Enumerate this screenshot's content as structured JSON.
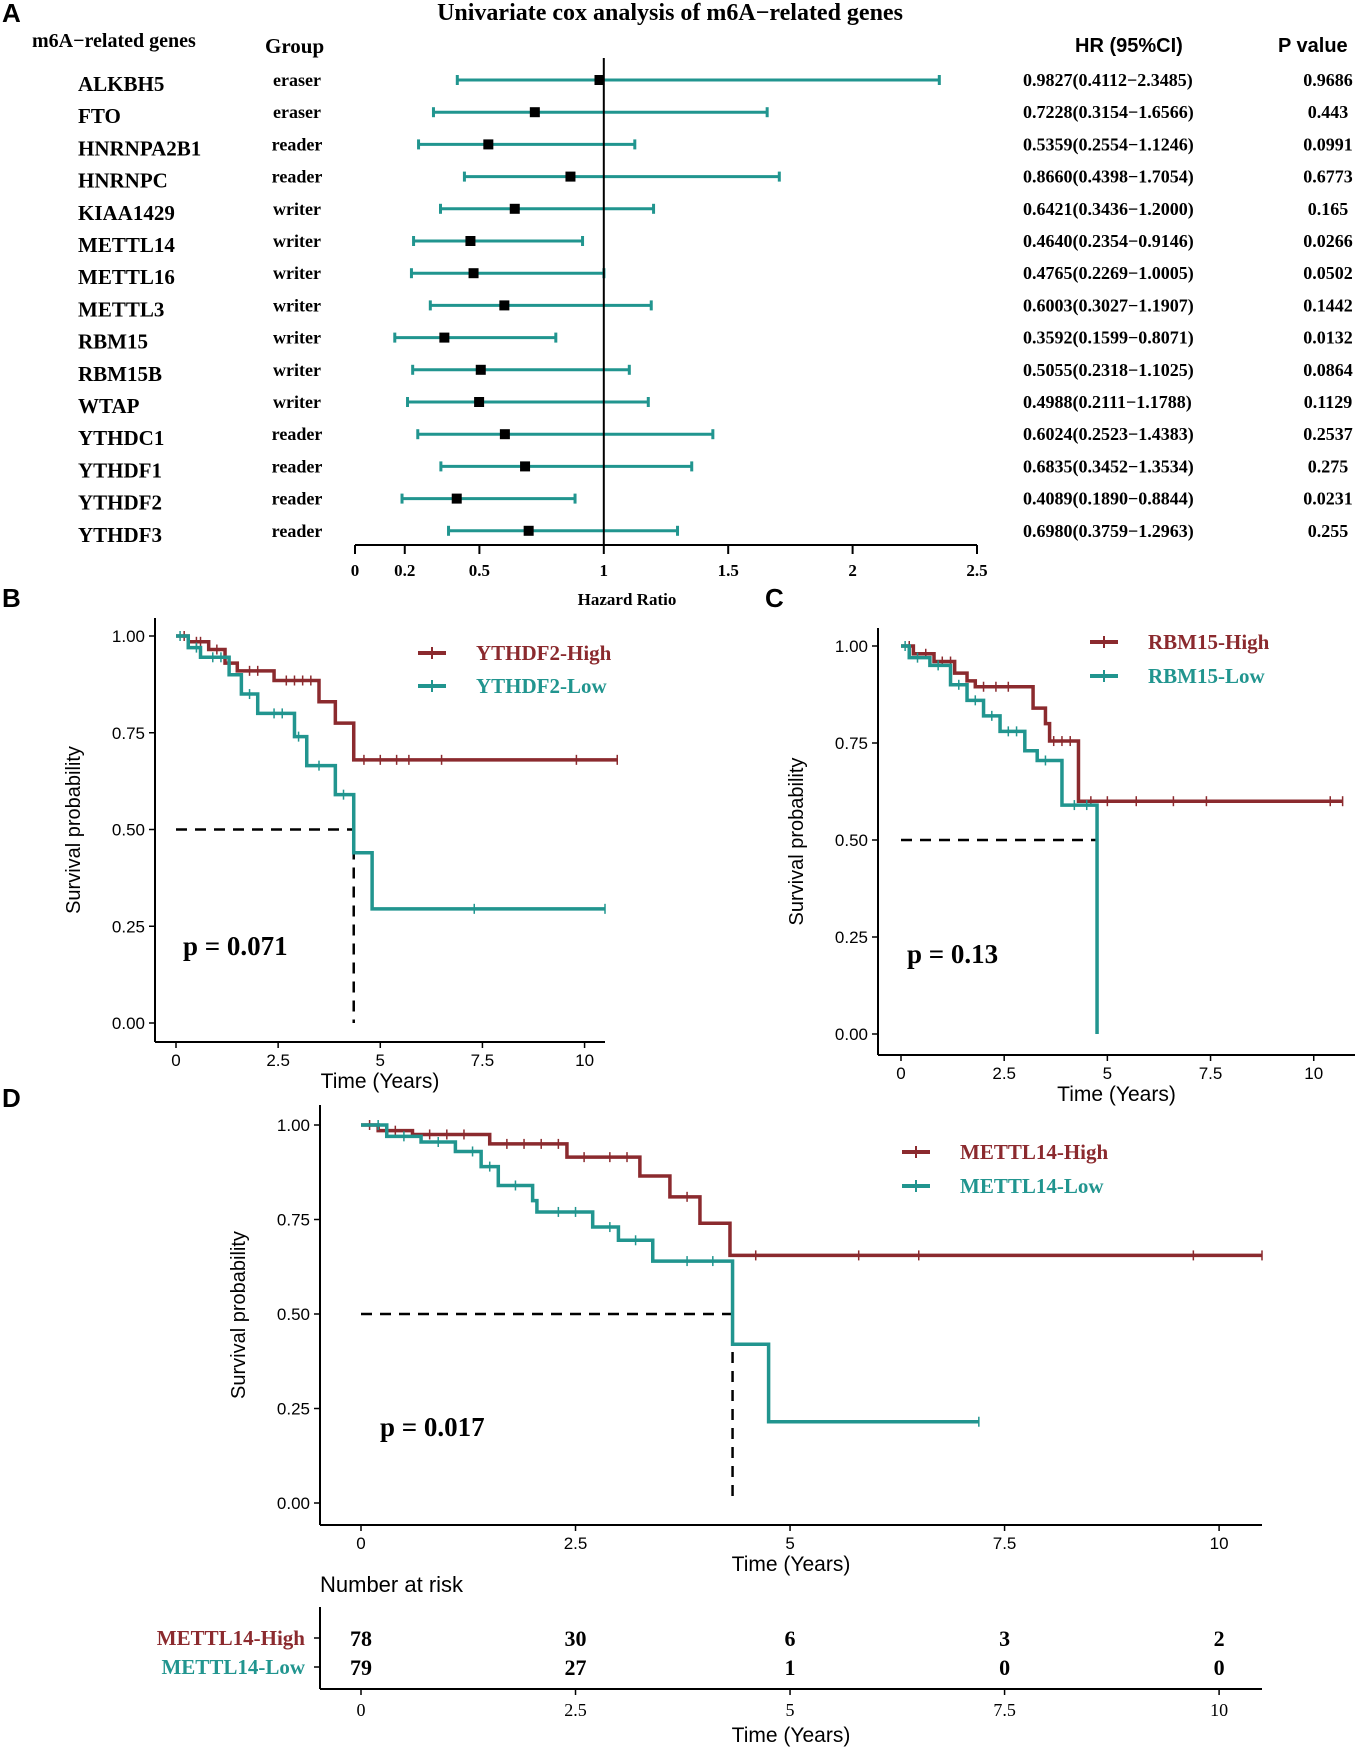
{
  "colors": {
    "high": "#8b2a2e",
    "low": "#21958f",
    "axis": "#000000",
    "forest": "#21958f"
  },
  "panels": {
    "a": "A",
    "b": "B",
    "c": "C",
    "d": "D"
  },
  "chart_data": [
    {
      "type": "forest",
      "panel": "A",
      "title": "Univariate cox analysis of m6A−related genes",
      "col_gene": "m6A−related genes",
      "col_group": "Group",
      "col_hr": "HR (95%CI)",
      "col_p": "P value",
      "xlabel": "Hazard Ratio",
      "xlim": [
        0,
        2.5
      ],
      "ticks": [
        0,
        0.2,
        0.5,
        1,
        1.5,
        2,
        2.5
      ],
      "tick_labels": [
        "0",
        "0.2",
        "0.5",
        "1",
        "1.5",
        "2",
        "2.5"
      ],
      "ref_line": 1,
      "rows": [
        {
          "gene": "ALKBH5",
          "group": "eraser",
          "hr": 0.9827,
          "lo": 0.4112,
          "hi": 2.3485,
          "hr_text": "0.9827(0.4112−2.3485)",
          "p": "0.9686"
        },
        {
          "gene": "FTO",
          "group": "eraser",
          "hr": 0.7228,
          "lo": 0.3154,
          "hi": 1.6566,
          "hr_text": "0.7228(0.3154−1.6566)",
          "p": "0.443"
        },
        {
          "gene": "HNRNPA2B1",
          "group": "reader",
          "hr": 0.5359,
          "lo": 0.2554,
          "hi": 1.1246,
          "hr_text": "0.5359(0.2554−1.1246)",
          "p": "0.0991"
        },
        {
          "gene": "HNRNPC",
          "group": "reader",
          "hr": 0.866,
          "lo": 0.4398,
          "hi": 1.7054,
          "hr_text": "0.8660(0.4398−1.7054)",
          "p": "0.6773"
        },
        {
          "gene": "KIAA1429",
          "group": "writer",
          "hr": 0.6421,
          "lo": 0.3436,
          "hi": 1.2,
          "hr_text": "0.6421(0.3436−1.2000)",
          "p": "0.165"
        },
        {
          "gene": "METTL14",
          "group": "writer",
          "hr": 0.464,
          "lo": 0.2354,
          "hi": 0.9146,
          "hr_text": "0.4640(0.2354−0.9146)",
          "p": "0.0266"
        },
        {
          "gene": "METTL16",
          "group": "writer",
          "hr": 0.4765,
          "lo": 0.2269,
          "hi": 1.0005,
          "hr_text": "0.4765(0.2269−1.0005)",
          "p": "0.0502"
        },
        {
          "gene": "METTL3",
          "group": "writer",
          "hr": 0.6003,
          "lo": 0.3027,
          "hi": 1.1907,
          "hr_text": "0.6003(0.3027−1.1907)",
          "p": "0.1442"
        },
        {
          "gene": "RBM15",
          "group": "writer",
          "hr": 0.3592,
          "lo": 0.1599,
          "hi": 0.8071,
          "hr_text": "0.3592(0.1599−0.8071)",
          "p": "0.0132"
        },
        {
          "gene": "RBM15B",
          "group": "writer",
          "hr": 0.5055,
          "lo": 0.2318,
          "hi": 1.1025,
          "hr_text": "0.5055(0.2318−1.1025)",
          "p": "0.0864"
        },
        {
          "gene": "WTAP",
          "group": "writer",
          "hr": 0.4988,
          "lo": 0.2111,
          "hi": 1.1788,
          "hr_text": "0.4988(0.2111−1.1788)",
          "p": "0.1129"
        },
        {
          "gene": "YTHDC1",
          "group": "reader",
          "hr": 0.6024,
          "lo": 0.2523,
          "hi": 1.4383,
          "hr_text": "0.6024(0.2523−1.4383)",
          "p": "0.2537"
        },
        {
          "gene": "YTHDF1",
          "group": "reader",
          "hr": 0.6835,
          "lo": 0.3452,
          "hi": 1.3534,
          "hr_text": "0.6835(0.3452−1.3534)",
          "p": "0.275"
        },
        {
          "gene": "YTHDF2",
          "group": "reader",
          "hr": 0.4089,
          "lo": 0.189,
          "hi": 0.8844,
          "hr_text": "0.4089(0.1890−0.8844)",
          "p": "0.0231"
        },
        {
          "gene": "YTHDF3",
          "group": "reader",
          "hr": 0.698,
          "lo": 0.3759,
          "hi": 1.2963,
          "hr_text": "0.6980(0.3759−1.2963)",
          "p": "0.255"
        }
      ]
    },
    {
      "type": "km",
      "panel": "B",
      "xlabel": "Time (Years)",
      "ylabel": "Survival probability",
      "xlim": [
        0,
        10.5
      ],
      "ylim": [
        0,
        1
      ],
      "xticks": [
        0,
        2.5,
        5,
        7.5,
        10
      ],
      "xtick_labels": [
        "0",
        "2.5",
        "5",
        "7.5",
        "10"
      ],
      "yticks": [
        0,
        0.25,
        0.5,
        0.75,
        1
      ],
      "ytick_labels": [
        "0.00",
        "0.25",
        "0.50",
        "0.75",
        "1.00"
      ],
      "pvalue": "p = 0.071",
      "median": 4.35,
      "series": [
        {
          "name": "YTHDF2-High",
          "color": "high",
          "steps": [
            [
              0,
              1
            ],
            [
              0.3,
              0.985
            ],
            [
              0.8,
              0.965
            ],
            [
              1.2,
              0.93
            ],
            [
              1.5,
              0.91
            ],
            [
              2.4,
              0.885
            ],
            [
              3.5,
              0.83
            ],
            [
              3.9,
              0.775
            ],
            [
              4.35,
              0.68
            ],
            [
              10.8,
              0.68
            ]
          ],
          "censor": [
            [
              0.2,
              1
            ],
            [
              0.5,
              0.985
            ],
            [
              0.6,
              0.985
            ],
            [
              1.0,
              0.965
            ],
            [
              1.8,
              0.91
            ],
            [
              2.0,
              0.91
            ],
            [
              2.7,
              0.885
            ],
            [
              2.9,
              0.885
            ],
            [
              3.1,
              0.885
            ],
            [
              3.3,
              0.885
            ],
            [
              4.6,
              0.68
            ],
            [
              5.0,
              0.68
            ],
            [
              5.4,
              0.68
            ],
            [
              5.7,
              0.68
            ],
            [
              6.5,
              0.68
            ],
            [
              9.8,
              0.68
            ],
            [
              10.8,
              0.68
            ]
          ]
        },
        {
          "name": "YTHDF2-Low",
          "color": "low",
          "steps": [
            [
              0,
              1
            ],
            [
              0.3,
              0.97
            ],
            [
              0.6,
              0.945
            ],
            [
              1.3,
              0.9
            ],
            [
              1.6,
              0.85
            ],
            [
              2.0,
              0.8
            ],
            [
              2.9,
              0.74
            ],
            [
              3.2,
              0.665
            ],
            [
              3.9,
              0.59
            ],
            [
              4.35,
              0.44
            ],
            [
              4.8,
              0.295
            ],
            [
              10.5,
              0.295
            ]
          ],
          "censor": [
            [
              0.1,
              1
            ],
            [
              0.5,
              0.97
            ],
            [
              0.9,
              0.945
            ],
            [
              1.1,
              0.945
            ],
            [
              1.8,
              0.85
            ],
            [
              2.4,
              0.8
            ],
            [
              2.6,
              0.8
            ],
            [
              3.0,
              0.74
            ],
            [
              3.5,
              0.665
            ],
            [
              4.1,
              0.59
            ],
            [
              7.3,
              0.295
            ],
            [
              10.5,
              0.295
            ]
          ]
        }
      ]
    },
    {
      "type": "km",
      "panel": "C",
      "xlabel": "Time (Years)",
      "ylabel": "Survival probability",
      "xlim": [
        0,
        11
      ],
      "ylim": [
        0,
        1
      ],
      "xticks": [
        0,
        2.5,
        5,
        7.5,
        10
      ],
      "xtick_labels": [
        "0",
        "2.5",
        "5",
        "7.5",
        "10"
      ],
      "yticks": [
        0,
        0.25,
        0.5,
        0.75,
        1
      ],
      "ytick_labels": [
        "0.00",
        "0.25",
        "0.50",
        "0.75",
        "1.00"
      ],
      "pvalue": "p = 0.13",
      "median": 4.75,
      "series": [
        {
          "name": "RBM15-High",
          "color": "high",
          "steps": [
            [
              0,
              1
            ],
            [
              0.3,
              0.98
            ],
            [
              0.8,
              0.96
            ],
            [
              1.3,
              0.93
            ],
            [
              1.6,
              0.91
            ],
            [
              1.8,
              0.895
            ],
            [
              3.2,
              0.84
            ],
            [
              3.5,
              0.8
            ],
            [
              3.6,
              0.755
            ],
            [
              4.3,
              0.6
            ],
            [
              10.7,
              0.6
            ]
          ],
          "censor": [
            [
              0.2,
              1
            ],
            [
              0.6,
              0.98
            ],
            [
              1.0,
              0.96
            ],
            [
              1.2,
              0.96
            ],
            [
              2.0,
              0.895
            ],
            [
              2.3,
              0.895
            ],
            [
              2.6,
              0.895
            ],
            [
              3.7,
              0.755
            ],
            [
              3.9,
              0.755
            ],
            [
              4.1,
              0.755
            ],
            [
              4.6,
              0.6
            ],
            [
              5.0,
              0.6
            ],
            [
              5.7,
              0.6
            ],
            [
              6.6,
              0.6
            ],
            [
              7.4,
              0.6
            ],
            [
              10.4,
              0.6
            ],
            [
              10.7,
              0.6
            ]
          ]
        },
        {
          "name": "RBM15-Low",
          "color": "low",
          "steps": [
            [
              0,
              1
            ],
            [
              0.2,
              0.97
            ],
            [
              0.7,
              0.95
            ],
            [
              1.2,
              0.9
            ],
            [
              1.6,
              0.86
            ],
            [
              2.0,
              0.82
            ],
            [
              2.4,
              0.78
            ],
            [
              3.0,
              0.73
            ],
            [
              3.3,
              0.705
            ],
            [
              3.9,
              0.59
            ],
            [
              4.75,
              0.0
            ],
            [
              4.75,
              0.0
            ]
          ],
          "censor": [
            [
              0.1,
              1
            ],
            [
              0.4,
              0.97
            ],
            [
              0.9,
              0.95
            ],
            [
              1.4,
              0.9
            ],
            [
              1.8,
              0.86
            ],
            [
              2.2,
              0.82
            ],
            [
              2.6,
              0.78
            ],
            [
              2.8,
              0.78
            ],
            [
              3.5,
              0.705
            ],
            [
              4.2,
              0.59
            ],
            [
              4.5,
              0.59
            ]
          ]
        }
      ]
    },
    {
      "type": "km",
      "panel": "D",
      "xlabel": "Time (Years)",
      "ylabel": "Survival probability",
      "xlim": [
        0,
        10.5
      ],
      "ylim": [
        0,
        1
      ],
      "xticks": [
        0,
        2.5,
        5,
        7.5,
        10
      ],
      "xtick_labels": [
        "0",
        "2.5",
        "5",
        "7.5",
        "10"
      ],
      "yticks": [
        0,
        0.25,
        0.5,
        0.75,
        1
      ],
      "ytick_labels": [
        "0.00",
        "0.25",
        "0.50",
        "0.75",
        "1.00"
      ],
      "pvalue": "p = 0.017",
      "median": 4.33,
      "series": [
        {
          "name": "METTL14-High",
          "color": "high",
          "steps": [
            [
              0,
              1
            ],
            [
              0.2,
              0.985
            ],
            [
              0.6,
              0.975
            ],
            [
              1.5,
              0.95
            ],
            [
              2.4,
              0.915
            ],
            [
              3.25,
              0.865
            ],
            [
              3.6,
              0.81
            ],
            [
              3.95,
              0.74
            ],
            [
              4.3,
              0.655
            ],
            [
              10.5,
              0.655
            ]
          ],
          "censor": [
            [
              0.1,
              1
            ],
            [
              0.4,
              0.985
            ],
            [
              0.8,
              0.975
            ],
            [
              1.0,
              0.975
            ],
            [
              1.2,
              0.975
            ],
            [
              1.7,
              0.95
            ],
            [
              1.9,
              0.95
            ],
            [
              2.1,
              0.95
            ],
            [
              2.3,
              0.95
            ],
            [
              2.6,
              0.915
            ],
            [
              2.9,
              0.915
            ],
            [
              3.1,
              0.915
            ],
            [
              3.8,
              0.81
            ],
            [
              4.6,
              0.655
            ],
            [
              5.8,
              0.655
            ],
            [
              6.5,
              0.655
            ],
            [
              9.7,
              0.655
            ],
            [
              10.5,
              0.655
            ]
          ]
        },
        {
          "name": "METTL14-Low",
          "color": "low",
          "steps": [
            [
              0,
              1
            ],
            [
              0.3,
              0.97
            ],
            [
              0.7,
              0.955
            ],
            [
              1.1,
              0.93
            ],
            [
              1.4,
              0.89
            ],
            [
              1.6,
              0.84
            ],
            [
              2.0,
              0.8
            ],
            [
              2.05,
              0.77
            ],
            [
              2.7,
              0.73
            ],
            [
              3.0,
              0.695
            ],
            [
              3.4,
              0.64
            ],
            [
              4.33,
              0.42
            ],
            [
              4.75,
              0.215
            ],
            [
              7.2,
              0.215
            ]
          ],
          "censor": [
            [
              0.2,
              1
            ],
            [
              0.5,
              0.97
            ],
            [
              0.9,
              0.955
            ],
            [
              1.3,
              0.93
            ],
            [
              1.5,
              0.89
            ],
            [
              1.8,
              0.84
            ],
            [
              2.3,
              0.77
            ],
            [
              2.5,
              0.77
            ],
            [
              2.9,
              0.73
            ],
            [
              3.2,
              0.695
            ],
            [
              3.8,
              0.64
            ],
            [
              4.1,
              0.64
            ],
            [
              7.2,
              0.215
            ]
          ]
        }
      ],
      "risk_table": {
        "title": "Number at risk",
        "rows": [
          {
            "name": "METTL14-High",
            "color": "high",
            "values": [
              "78",
              "30",
              "6",
              "3",
              "2"
            ]
          },
          {
            "name": "METTL14-Low",
            "color": "low",
            "values": [
              "79",
              "27",
              "1",
              "0",
              "0"
            ]
          }
        ],
        "times": [
          0,
          2.5,
          5,
          7.5,
          10
        ]
      }
    }
  ]
}
